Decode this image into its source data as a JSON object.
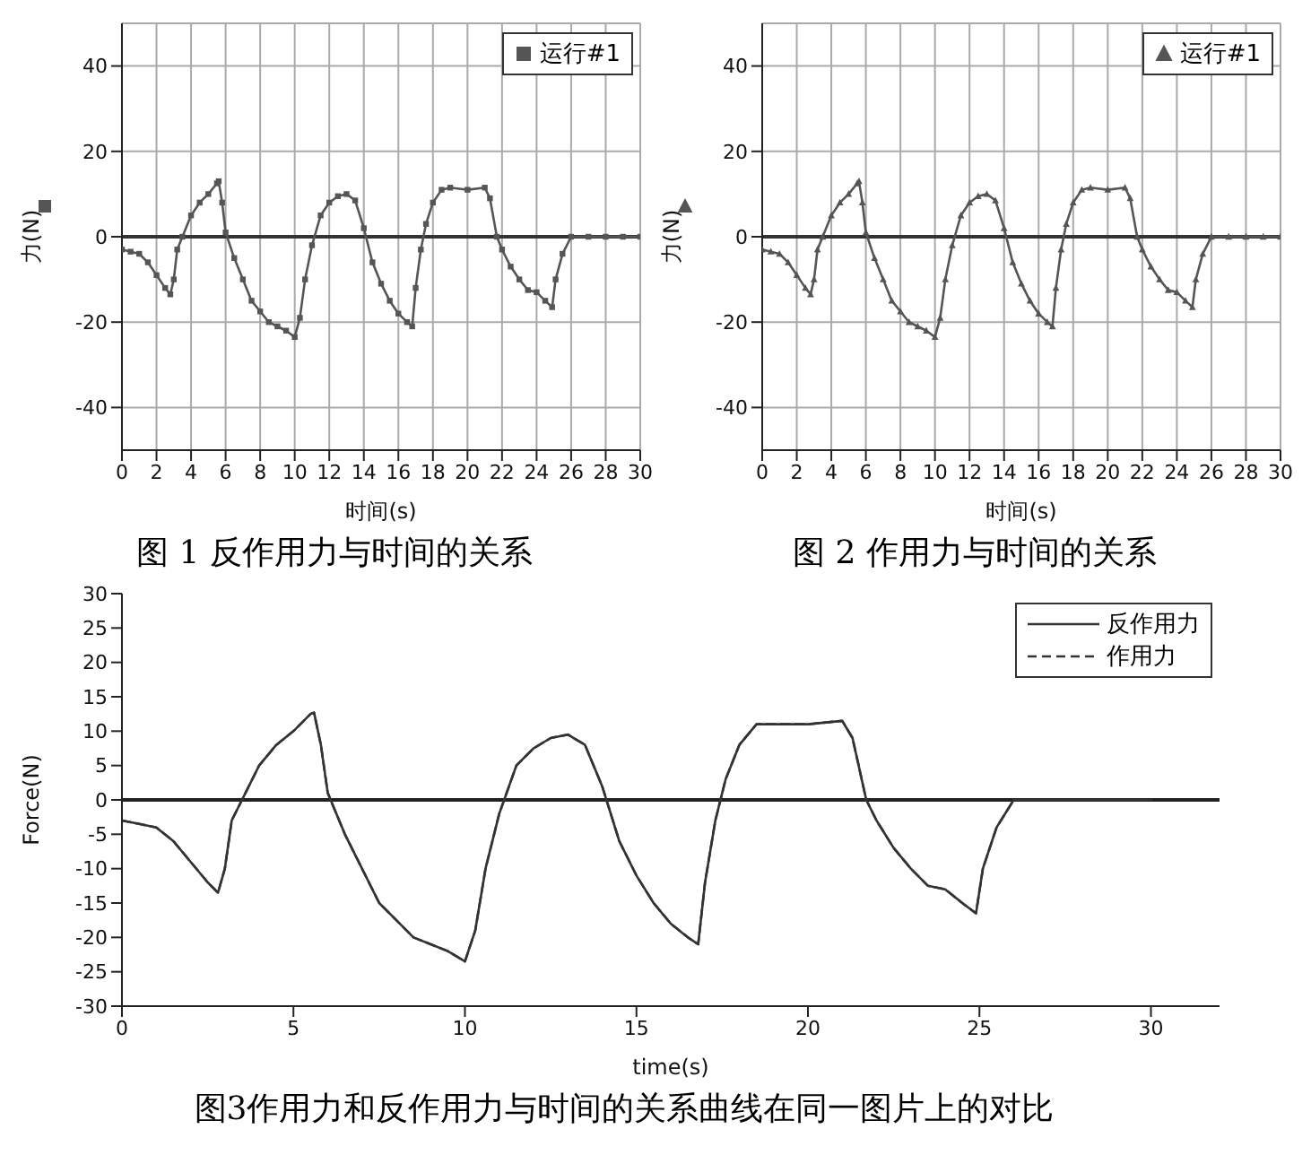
{
  "chart_data": [
    {
      "type": "line",
      "xlabel": "时间(s)",
      "ylabel": "力(N)",
      "annotations": [
        "图 1 反作用力与时间的关系"
      ],
      "x": [
        0,
        0.5,
        1,
        1.5,
        2,
        2.5,
        2.8,
        3,
        3.2,
        3.5,
        4,
        4.5,
        5,
        5.5,
        5.6,
        5.8,
        6,
        6.5,
        7,
        7.5,
        8,
        8.5,
        9,
        9.5,
        10,
        10.3,
        10.6,
        11,
        11.5,
        12,
        12.5,
        13,
        13.5,
        14,
        14.5,
        15,
        15.5,
        16,
        16.5,
        16.8,
        17,
        17.3,
        17.6,
        18,
        18.5,
        19,
        20,
        21,
        21.3,
        21.7,
        22,
        22.5,
        23,
        23.5,
        24,
        24.5,
        24.9,
        25.1,
        25.5,
        26,
        27,
        28,
        29,
        30
      ],
      "series": [
        {
          "name": "运行#1",
          "color": "#555555",
          "values": [
            -3,
            -3.5,
            -4,
            -6,
            -9,
            -12,
            -13.5,
            -10,
            -3,
            0,
            5,
            8,
            10,
            12.5,
            13,
            8,
            1,
            -5,
            -10,
            -15,
            -17.5,
            -20,
            -21,
            -22,
            -23.5,
            -19,
            -10,
            -2,
            5,
            8,
            9.5,
            10,
            8.5,
            2,
            -6,
            -11,
            -15,
            -18,
            -20,
            -21,
            -12,
            -3,
            3,
            8,
            11,
            11.5,
            11,
            11.5,
            9,
            0,
            -3,
            -7,
            -10,
            -12.5,
            -13,
            -15,
            -16.5,
            -10,
            -4,
            0,
            0,
            0,
            0,
            0
          ]
        }
      ],
      "xlim": [
        0,
        30
      ],
      "xticks": [
        0,
        2,
        4,
        6,
        8,
        10,
        12,
        14,
        16,
        18,
        20,
        22,
        24,
        26,
        28,
        30
      ],
      "ylim": [
        -50,
        50
      ],
      "yticks": [
        -40,
        -20,
        0,
        20,
        40
      ],
      "grid": true,
      "legend": "top right",
      "marker": "square",
      "ref_lines": [
        {
          "axis": "y",
          "value": 0,
          "color": "#333333"
        }
      ]
    },
    {
      "type": "line",
      "xlabel": "时间(s)",
      "ylabel": "力(N)",
      "annotations": [
        "图 2 作用力与时间的关系"
      ],
      "x": [
        0,
        0.5,
        1,
        1.5,
        2,
        2.5,
        2.8,
        3,
        3.2,
        3.5,
        4,
        4.5,
        5,
        5.5,
        5.6,
        5.8,
        6,
        6.5,
        7,
        7.5,
        8,
        8.5,
        9,
        9.5,
        10,
        10.3,
        10.6,
        11,
        11.5,
        12,
        12.5,
        13,
        13.5,
        14,
        14.5,
        15,
        15.5,
        16,
        16.5,
        16.8,
        17,
        17.3,
        17.6,
        18,
        18.5,
        19,
        20,
        21,
        21.3,
        21.7,
        22,
        22.5,
        23,
        23.5,
        24,
        24.5,
        24.9,
        25.1,
        25.5,
        26,
        27,
        28,
        29,
        30
      ],
      "series": [
        {
          "name": "运行#1",
          "color": "#555555",
          "values": [
            -3,
            -3.5,
            -4,
            -6,
            -9,
            -12,
            -13.5,
            -10,
            -3,
            0,
            5,
            8,
            10,
            12.5,
            13,
            8,
            1,
            -5,
            -10,
            -15,
            -17.5,
            -20,
            -21,
            -22,
            -23.5,
            -19,
            -10,
            -2,
            5,
            8,
            9.5,
            10,
            8.5,
            2,
            -6,
            -11,
            -15,
            -18,
            -20,
            -21,
            -12,
            -3,
            3,
            8,
            11,
            11.5,
            11,
            11.5,
            9,
            0,
            -3,
            -7,
            -10,
            -12.5,
            -13,
            -15,
            -16.5,
            -10,
            -4,
            0,
            0,
            0,
            0,
            0
          ]
        }
      ],
      "xlim": [
        0,
        30
      ],
      "xticks": [
        0,
        2,
        4,
        6,
        8,
        10,
        12,
        14,
        16,
        18,
        20,
        22,
        24,
        26,
        28,
        30
      ],
      "ylim": [
        -50,
        50
      ],
      "yticks": [
        -40,
        -20,
        0,
        20,
        40
      ],
      "grid": true,
      "legend": "top right",
      "marker": "triangle",
      "ref_lines": [
        {
          "axis": "y",
          "value": 0,
          "color": "#333333"
        }
      ]
    },
    {
      "type": "line",
      "xlabel": "time(s)",
      "ylabel": "Force(N)",
      "annotations": [
        "图3作用力和反作用力与时间的关系曲线在同一图片上的对比"
      ],
      "x": [
        0,
        0.5,
        1,
        1.5,
        2,
        2.5,
        2.8,
        3,
        3.2,
        3.5,
        4,
        4.5,
        5,
        5.5,
        5.6,
        5.8,
        6,
        6.5,
        7,
        7.5,
        8,
        8.5,
        9,
        9.5,
        10,
        10.3,
        10.6,
        11,
        11.5,
        12,
        12.5,
        13,
        13.5,
        14,
        14.5,
        15,
        15.5,
        16,
        16.5,
        16.8,
        17,
        17.3,
        17.6,
        18,
        18.5,
        19,
        20,
        21,
        21.3,
        21.7,
        22,
        22.5,
        23,
        23.5,
        24,
        24.5,
        24.9,
        25.1,
        25.5,
        26,
        27,
        28,
        29,
        30
      ],
      "series": [
        {
          "name": "反作用力",
          "color": "#333333",
          "line_style": "solid",
          "values": [
            -3,
            -3.5,
            -4,
            -6,
            -9,
            -12,
            -13.5,
            -10,
            -3,
            0,
            5,
            8,
            10,
            12.5,
            12.7,
            8,
            1,
            -5,
            -10,
            -15,
            -17.5,
            -20,
            -21,
            -22,
            -23.5,
            -19,
            -10,
            -2,
            5,
            7.5,
            9,
            9.5,
            8,
            2,
            -6,
            -11,
            -15,
            -18,
            -20,
            -21,
            -12,
            -3,
            3,
            8,
            11,
            11,
            11,
            11.5,
            9,
            0,
            -3,
            -7,
            -10,
            -12.5,
            -13,
            -15,
            -16.5,
            -10,
            -4,
            0,
            0,
            0,
            0,
            0
          ]
        },
        {
          "name": "作用力",
          "color": "#333333",
          "line_style": "dashed",
          "values": [
            -3,
            -3.5,
            -4,
            -6,
            -9,
            -12,
            -13.5,
            -10,
            -3,
            0,
            5,
            8,
            10,
            12.5,
            12.7,
            8,
            1,
            -5,
            -10,
            -15,
            -17.5,
            -20,
            -21,
            -22,
            -23.5,
            -19,
            -10,
            -2,
            5,
            7.5,
            9,
            9.5,
            8,
            2,
            -6,
            -11,
            -15,
            -18,
            -20,
            -21,
            -12,
            -3,
            3,
            8,
            11,
            11,
            11,
            11.5,
            9,
            0,
            -3,
            -7,
            -10,
            -12.5,
            -13,
            -15,
            -16.5,
            -10,
            -4,
            0,
            0,
            0,
            0,
            0
          ]
        }
      ],
      "xlim": [
        0,
        32
      ],
      "xticks": [
        0,
        5,
        10,
        15,
        20,
        25,
        30
      ],
      "ylim": [
        -30,
        30
      ],
      "yticks": [
        -30,
        -25,
        -20,
        -15,
        -10,
        -5,
        0,
        5,
        10,
        15,
        20,
        25,
        30
      ],
      "legend": "top right",
      "ref_lines": [
        {
          "axis": "y",
          "value": 0,
          "color": "#222222"
        }
      ]
    }
  ]
}
